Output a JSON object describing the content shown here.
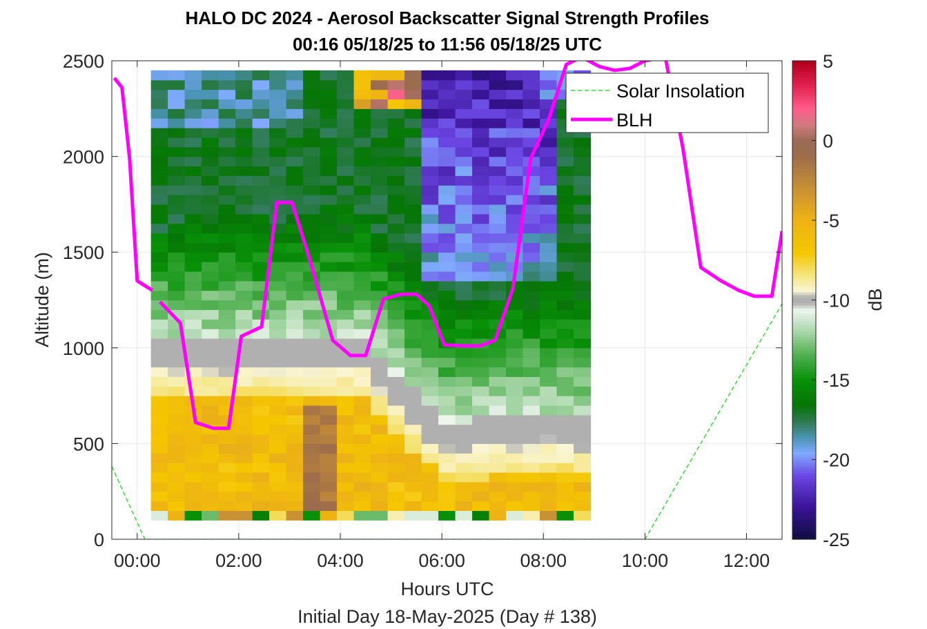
{
  "chart_data": {
    "type": "heatmap",
    "title": "HALO DC 2024 - Aerosol Backscatter Signal Strength Profiles",
    "subtitle": "00:16 05/18/25 to 11:56 05/18/25  UTC",
    "xlabel": "Hours UTC",
    "xlabel2": "Initial Day 18-May-2025 (Day # 138)",
    "ylabel": "Altitude (m)",
    "colorbar_label": "dB",
    "xlim": [
      -0.5,
      12.7
    ],
    "ylim": [
      0,
      2500
    ],
    "clim": [
      -25,
      5
    ],
    "x_ticks": [
      0,
      2,
      4,
      6,
      8,
      10,
      12
    ],
    "x_tick_labels": [
      "00:00",
      "02:00",
      "04:00",
      "06:00",
      "08:00",
      "10:00",
      "12:00"
    ],
    "y_ticks": [
      0,
      500,
      1000,
      1500,
      2000,
      2500
    ],
    "y_tick_labels": [
      "0",
      "500",
      "1000",
      "1500",
      "2000",
      "2500"
    ],
    "colorbar_ticks": [
      5,
      0,
      -5,
      -10,
      -15,
      -20,
      -25
    ],
    "colorbar_tick_labels": [
      "5",
      "0",
      "-5",
      "-10",
      "-15",
      "-20",
      "-25"
    ],
    "grid": true,
    "legend_position": "top-right",
    "heatmap": {
      "x_start": 0.27,
      "x_step": 0.333,
      "columns": 26,
      "y_start": 100,
      "y_step": 50,
      "rows": 48,
      "data_gap_above": 2450
    },
    "series": [
      {
        "name": "Solar Insolation",
        "style": "dashed",
        "color": "#00dd00",
        "x": [
          -0.5,
          0.15,
          10.0,
          12.7
        ],
        "y": [
          380,
          0,
          0,
          1230
        ]
      },
      {
        "name": "BLH",
        "style": "solid",
        "color": "#ff00ff",
        "segments": [
          {
            "x": [
              -0.45,
              -0.3,
              -0.15,
              0.0,
              0.3
            ],
            "y": [
              2410,
              2360,
              1990,
              1350,
              1300
            ]
          },
          {
            "x": [
              0.45,
              0.85,
              1.15,
              1.5,
              1.8,
              2.05,
              2.45,
              2.75,
              3.05,
              3.4,
              3.85,
              4.2,
              4.5,
              4.85,
              5.2,
              5.5,
              5.75,
              6.05,
              6.45,
              6.75,
              7.05,
              7.4,
              7.75,
              8.1,
              8.45,
              8.75,
              9.1,
              9.4,
              9.7,
              10.0,
              10.4,
              10.75,
              11.1,
              11.5,
              11.85,
              12.15,
              12.5,
              12.7
            ],
            "y": [
              1240,
              1130,
              610,
              580,
              580,
              1060,
              1110,
              1760,
              1760,
              1460,
              1040,
              960,
              960,
              1255,
              1280,
              1280,
              1220,
              1015,
              1010,
              1010,
              1040,
              1310,
              1990,
              2190,
              2480,
              2520,
              2470,
              2450,
              2460,
              2500,
              2520,
              2040,
              1420,
              1350,
              1300,
              1270,
              1270,
              1610
            ]
          }
        ]
      }
    ],
    "colorscale": [
      {
        "v": -25,
        "c": "#0d0d40"
      },
      {
        "v": -23,
        "c": "#3a1396"
      },
      {
        "v": -21,
        "c": "#6b46e3"
      },
      {
        "v": -19.6,
        "c": "#80aaff"
      },
      {
        "v": -18.6,
        "c": "#4a93b3"
      },
      {
        "v": -17.6,
        "c": "#2e7a50"
      },
      {
        "v": -16.6,
        "c": "#067506"
      },
      {
        "v": -15,
        "c": "#089108"
      },
      {
        "v": -13.5,
        "c": "#4cae4c"
      },
      {
        "v": -12,
        "c": "#a8d6a8"
      },
      {
        "v": -10.6,
        "c": "#eef5ee"
      },
      {
        "v": -10.2,
        "c": "#b0b0b0"
      },
      {
        "v": -9.8,
        "c": "#b0b0b0"
      },
      {
        "v": -9.4,
        "c": "#f9f5d2"
      },
      {
        "v": -8.2,
        "c": "#f5e069"
      },
      {
        "v": -7,
        "c": "#f5c600"
      },
      {
        "v": -5,
        "c": "#edb314"
      },
      {
        "v": -3,
        "c": "#c99034"
      },
      {
        "v": -1,
        "c": "#9e6e4a"
      },
      {
        "v": 0,
        "c": "#9a6a55"
      },
      {
        "v": 1,
        "c": "#d07a7e"
      },
      {
        "v": 2,
        "c": "#ff5c8a"
      },
      {
        "v": 3.5,
        "c": "#e0204d"
      },
      {
        "v": 5,
        "c": "#b0001c"
      }
    ],
    "colors": {
      "blh": "#ff00ff",
      "solar": "#00dd00",
      "grid": "#e6e6e6",
      "axis": "#262626"
    }
  }
}
